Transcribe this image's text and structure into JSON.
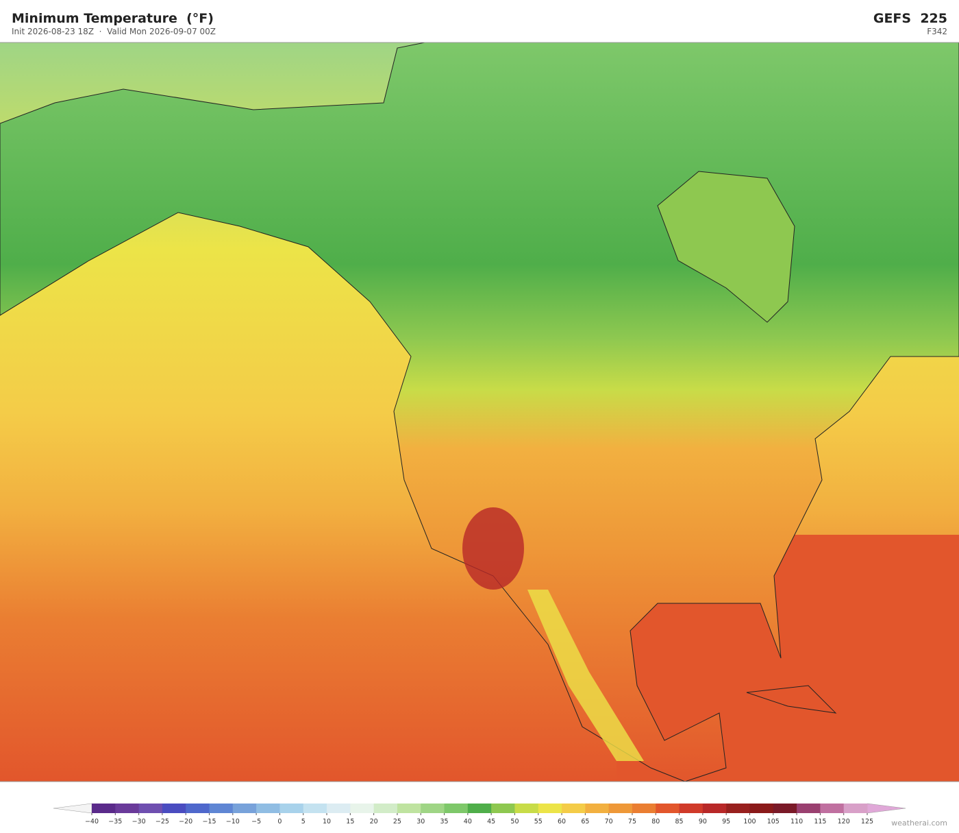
{
  "header": {
    "title": "Minimum Temperature  (°F)",
    "subtitle": "Init 2026-08-23 18Z  ·  Valid Mon 2026-09-07 00Z",
    "model": "GEFS  225",
    "forecast_hour": "F342"
  },
  "colorbar": {
    "ticks": [
      {
        "value": -40,
        "label": "−40"
      },
      {
        "value": -35,
        "label": "−35"
      },
      {
        "value": -30,
        "label": "−30"
      },
      {
        "value": -25,
        "label": "−25"
      },
      {
        "value": -20,
        "label": "−20"
      },
      {
        "value": -15,
        "label": "−15"
      },
      {
        "value": -10,
        "label": "−10"
      },
      {
        "value": -5,
        "label": "−5"
      },
      0,
      5,
      10,
      15,
      20,
      25,
      30,
      35,
      40,
      45,
      50,
      55,
      60,
      65,
      70,
      75,
      80,
      85,
      90,
      95,
      100,
      105,
      110,
      115,
      120,
      125
    ],
    "colors": [
      "#5a2a8a",
      "#6a3a9a",
      "#6f4fb0",
      "#4a4cc0",
      "#4f68cc",
      "#5f86d4",
      "#78a2da",
      "#90bde3",
      "#a8d2eb",
      "#c4e2f0",
      "#dcecf2",
      "#e8f4ea",
      "#d2ecc8",
      "#bfe3a0",
      "#9fd585",
      "#7ec86a",
      "#4fae4a",
      "#8ec850",
      "#c8dc48",
      "#ece448",
      "#f4cc48",
      "#f2b040",
      "#ee9838",
      "#ea7e32",
      "#e2562c",
      "#d03a2a",
      "#b82828",
      "#98201e",
      "#8a1a1a",
      "#7a1a28",
      "#9a4070",
      "#c070a0",
      "#d8a0c8"
    ]
  },
  "footer": {
    "credit": "weatherai.com"
  }
}
